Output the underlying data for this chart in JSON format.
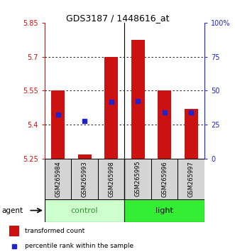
{
  "title": "GDS3187 / 1448616_at",
  "samples": [
    "GSM265984",
    "GSM265993",
    "GSM265998",
    "GSM265995",
    "GSM265996",
    "GSM265997"
  ],
  "bar_bottom": 5.25,
  "bar_tops": [
    5.55,
    5.268,
    5.7,
    5.775,
    5.55,
    5.47
  ],
  "blue_dot_y": [
    5.445,
    5.415,
    5.5,
    5.505,
    5.455,
    5.455
  ],
  "ymin": 5.25,
  "ymax": 5.85,
  "yticks_left": [
    5.25,
    5.4,
    5.55,
    5.7,
    5.85
  ],
  "yticks_right_pct": [
    0,
    25,
    50,
    75,
    100
  ],
  "yticks_right_labels": [
    "0",
    "25",
    "50",
    "75",
    "100%"
  ],
  "bar_color": "#cc1111",
  "blue_color": "#2222cc",
  "control_bg": "#ccffcc",
  "light_bg": "#33ee33",
  "sample_box_bg": "#d4d4d4",
  "group_text_control": "#339933",
  "group_text_light": "#000000",
  "legend_bar_label": "transformed count",
  "legend_dot_label": "percentile rank within the sample"
}
